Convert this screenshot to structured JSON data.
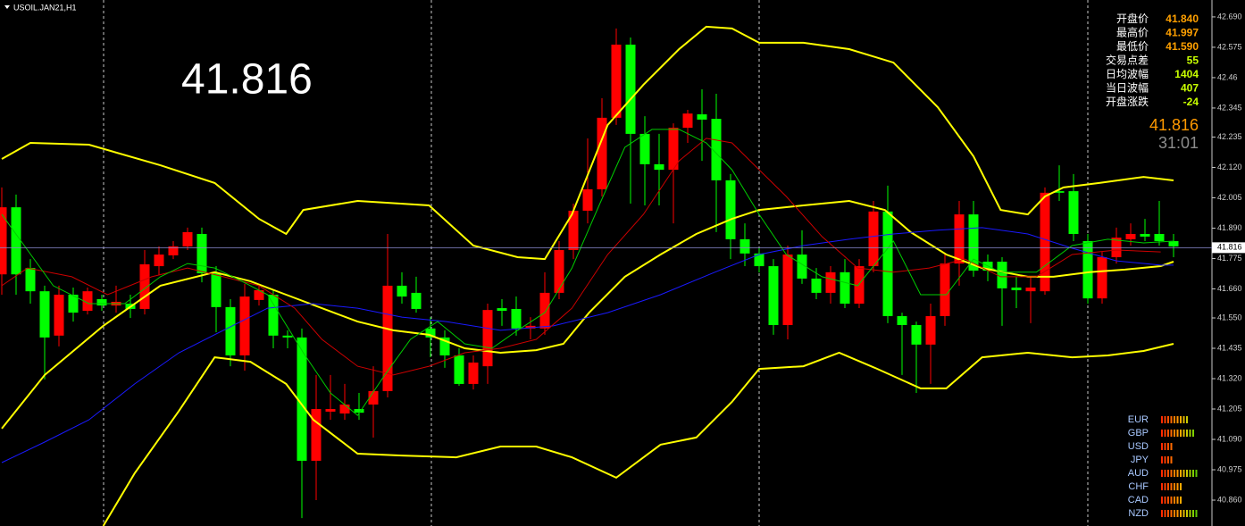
{
  "chart_data": {
    "type": "candlestick",
    "symbol": "USOIL.JAN21,H1",
    "up_color": "#ff0000",
    "down_color": "#00ff00",
    "open": [
      41.715,
      41.969,
      41.739,
      41.651,
      41.483,
      41.638,
      41.577,
      41.621,
      41.597,
      41.604,
      41.584,
      41.746,
      41.787,
      41.821,
      41.868,
      41.719,
      41.591,
      41.408,
      41.618,
      41.638,
      41.483,
      41.476,
      41.009,
      41.195,
      41.188,
      41.205,
      41.222,
      41.273,
      41.672,
      41.645,
      41.51,
      41.476,
      41.408,
      41.3,
      41.367,
      41.587,
      41.584,
      41.51,
      41.51,
      41.645,
      41.807,
      41.956,
      42.037,
      42.308,
      42.585,
      42.247,
      42.132,
      42.111,
      42.27,
      42.321,
      42.304,
      42.071,
      41.848,
      41.794,
      41.746,
      41.523,
      41.79,
      41.699,
      41.645,
      41.723,
      41.604,
      41.746,
      41.953,
      41.557,
      41.523,
      41.449,
      41.557,
      41.756,
      41.942,
      41.763,
      41.763,
      41.665,
      41.651,
      41.651,
      42.03,
      42.03,
      41.841,
      41.624,
      41.78,
      41.848,
      41.868,
      41.868,
      41.841
    ],
    "high": [
      42.044,
      42.017,
      41.773,
      41.672,
      41.672,
      41.665,
      41.665,
      41.638,
      41.672,
      41.638,
      41.807,
      41.821,
      41.841,
      41.892,
      41.892,
      41.746,
      41.621,
      41.679,
      41.679,
      41.655,
      41.503,
      41.51,
      41.334,
      41.334,
      41.3,
      41.266,
      41.367,
      41.868,
      41.723,
      41.706,
      41.553,
      41.503,
      41.435,
      41.408,
      41.604,
      41.621,
      41.631,
      41.553,
      41.723,
      41.841,
      41.983,
      42.23,
      42.382,
      42.646,
      42.612,
      42.314,
      42.247,
      42.287,
      42.338,
      42.416,
      42.399,
      42.095,
      41.908,
      41.814,
      41.773,
      41.824,
      41.882,
      41.739,
      41.746,
      41.773,
      41.773,
      41.993,
      42.051,
      41.57,
      41.536,
      41.604,
      41.79,
      41.993,
      41.993,
      41.79,
      41.78,
      41.706,
      41.706,
      42.044,
      42.128,
      42.095,
      41.868,
      41.8,
      41.892,
      41.908,
      41.925,
      41.993,
      41.868
    ],
    "low": [
      41.638,
      41.638,
      41.604,
      41.317,
      41.442,
      41.536,
      41.563,
      41.577,
      41.57,
      41.55,
      41.563,
      41.712,
      41.773,
      41.807,
      41.685,
      41.496,
      41.367,
      41.35,
      41.597,
      41.435,
      41.435,
      40.792,
      40.86,
      41.164,
      41.164,
      41.164,
      41.097,
      41.249,
      41.604,
      41.57,
      41.401,
      41.361,
      41.293,
      41.279,
      41.3,
      41.52,
      41.483,
      41.469,
      41.486,
      41.621,
      41.773,
      41.908,
      42.01,
      42.281,
      41.983,
      41.976,
      41.976,
      41.908,
      42.213,
      42.145,
      41.875,
      41.773,
      41.746,
      41.722,
      41.486,
      41.469,
      41.679,
      41.621,
      41.604,
      41.587,
      41.587,
      41.723,
      41.53,
      41.334,
      41.266,
      41.3,
      41.52,
      41.672,
      41.706,
      41.689,
      41.52,
      41.587,
      41.53,
      41.638,
      41.993,
      41.841,
      41.604,
      41.604,
      41.756,
      41.824,
      41.841,
      41.824,
      41.78
    ],
    "close": [
      41.969,
      41.715,
      41.651,
      41.476,
      41.638,
      41.57,
      41.651,
      41.597,
      41.611,
      41.584,
      41.753,
      41.79,
      41.821,
      41.875,
      41.719,
      41.591,
      41.408,
      41.631,
      41.655,
      41.483,
      41.476,
      41.009,
      41.205,
      41.205,
      41.222,
      41.191,
      41.273,
      41.672,
      41.631,
      41.584,
      41.476,
      41.408,
      41.3,
      41.381,
      41.58,
      41.577,
      41.51,
      41.52,
      41.645,
      41.807,
      41.956,
      42.037,
      42.308,
      42.585,
      42.247,
      42.132,
      42.111,
      42.27,
      42.324,
      42.301,
      42.071,
      41.848,
      41.794,
      41.746,
      41.523,
      41.79,
      41.699,
      41.645,
      41.723,
      41.604,
      41.746,
      41.953,
      41.557,
      41.523,
      41.449,
      41.557,
      41.756,
      41.942,
      41.729,
      41.729,
      41.662,
      41.655,
      41.665,
      42.024,
      42.024,
      41.868,
      41.624,
      41.78,
      41.854,
      41.868,
      41.858,
      41.841,
      41.821
    ],
    "overlays": [
      {
        "color": "#ffff00",
        "x": [
          0,
          2,
          6.1,
          11.1,
          14.9,
          18,
          19.9,
          21.1,
          24.9,
          29.9,
          33,
          36.1,
          38,
          39.9,
          42.4,
          44.9,
          47.4,
          49.3,
          51.1,
          53,
          56.1,
          59.3,
          62.4,
          65.5,
          68,
          69.9,
          71.8,
          73,
          74.3,
          76.8,
          79.9,
          82
        ],
        "values": [
          42.152,
          42.213,
          42.206,
          42.128,
          42.061,
          41.925,
          41.868,
          41.959,
          41.993,
          41.976,
          41.824,
          41.78,
          41.773,
          41.942,
          42.281,
          42.433,
          42.568,
          42.653,
          42.646,
          42.592,
          42.592,
          42.568,
          42.517,
          42.348,
          42.162,
          41.959,
          41.942,
          42.01,
          42.044,
          42.061,
          42.084,
          42.071
        ]
      },
      {
        "color": "#ffff00",
        "x": [
          0,
          3,
          7.1,
          11.1,
          14.9,
          17.4,
          19.9,
          22.4,
          24.9,
          27.4,
          29.9,
          32.4,
          34.9,
          37.4,
          39.3,
          41.1,
          43.6,
          46.1,
          48.6,
          51.1,
          53,
          56.1,
          59.3,
          61.8,
          63.6,
          66.1,
          68.6,
          71.8,
          73.6,
          76.1,
          78.6,
          81.1,
          82
        ],
        "values": [
          41.131,
          41.334,
          41.52,
          41.672,
          41.723,
          41.689,
          41.638,
          41.587,
          41.536,
          41.503,
          41.486,
          41.435,
          41.418,
          41.428,
          41.452,
          41.57,
          41.706,
          41.79,
          41.868,
          41.925,
          41.959,
          41.976,
          41.993,
          41.959,
          41.875,
          41.79,
          41.739,
          41.706,
          41.706,
          41.723,
          41.733,
          41.746,
          41.763
        ]
      },
      {
        "color": "#ffff00",
        "x": [
          7.1,
          9.3,
          12.4,
          14.9,
          17.4,
          19.9,
          21.8,
          24.9,
          28,
          31.8,
          34.9,
          37.4,
          39.9,
          43,
          46.1,
          48.6,
          51.1,
          53,
          56.1,
          58.6,
          61.1,
          64.3,
          66.1,
          68.6,
          71.8,
          74.9,
          77.4,
          79.9,
          82
        ],
        "values": [
          40.762,
          40.962,
          41.198,
          41.401,
          41.384,
          41.3,
          41.164,
          41.036,
          41.029,
          41.022,
          41.063,
          41.063,
          41.022,
          40.945,
          41.07,
          41.097,
          41.232,
          41.357,
          41.367,
          41.418,
          41.361,
          41.283,
          41.283,
          41.401,
          41.418,
          41.401,
          41.408,
          41.425,
          41.452
        ]
      },
      {
        "color": "#1a1aff",
        "x": [
          0,
          3,
          6.1,
          9.3,
          12.4,
          15.5,
          18.6,
          21.8,
          24.9,
          28,
          31.1,
          34.9,
          38.6,
          42.4,
          46.1,
          49.9,
          53,
          56.1,
          59.3,
          62.4,
          65.5,
          68.6,
          71.8,
          74.9,
          78,
          81.1,
          82
        ],
        "values": [
          41.002,
          41.08,
          41.164,
          41.3,
          41.418,
          41.503,
          41.587,
          41.604,
          41.587,
          41.553,
          41.536,
          41.503,
          41.52,
          41.57,
          41.638,
          41.723,
          41.79,
          41.824,
          41.848,
          41.868,
          41.882,
          41.892,
          41.868,
          41.814,
          41.766,
          41.75,
          41.75
        ]
      },
      {
        "color": "#cc0000",
        "x": [
          0,
          1.8,
          4.9,
          7.4,
          10.5,
          13,
          15.5,
          18,
          20.5,
          22.4,
          24.9,
          27.4,
          29.9,
          32.4,
          34.9,
          37.4,
          39.9,
          42.4,
          44.9,
          47.4,
          49.3,
          51.1,
          53,
          54.9,
          57.4,
          59.9,
          62.4,
          64.9,
          67.4,
          69.9,
          72.4,
          74.9,
          78,
          81.1
        ],
        "values": [
          41.672,
          41.739,
          41.706,
          41.638,
          41.706,
          41.739,
          41.706,
          41.672,
          41.587,
          41.469,
          41.367,
          41.334,
          41.367,
          41.418,
          41.435,
          41.469,
          41.587,
          41.79,
          41.942,
          42.145,
          42.23,
          42.213,
          42.111,
          42.01,
          41.858,
          41.739,
          41.723,
          41.739,
          41.773,
          41.706,
          41.706,
          41.79,
          41.807,
          41.8
        ]
      },
      {
        "color": "#00cc00",
        "x": [
          0,
          1.8,
          3.6,
          6.1,
          8.6,
          11.1,
          13,
          14.9,
          16.8,
          18.6,
          21.1,
          23,
          24.9,
          26.8,
          28.6,
          30.5,
          32.4,
          34.3,
          36.1,
          38,
          39.9,
          41.8,
          43.6,
          45.5,
          47.4,
          49.3,
          51.1,
          53,
          54.9,
          57.4,
          59.9,
          62.4,
          64.3,
          66.1,
          68,
          69.9,
          72.4,
          74.9,
          77.4,
          79.9,
          82
        ],
        "values": [
          41.942,
          41.807,
          41.672,
          41.604,
          41.604,
          41.706,
          41.756,
          41.739,
          41.689,
          41.638,
          41.418,
          41.266,
          41.181,
          41.334,
          41.469,
          41.536,
          41.452,
          41.435,
          41.503,
          41.57,
          41.739,
          41.976,
          42.196,
          42.264,
          42.264,
          42.213,
          42.111,
          41.942,
          41.79,
          41.706,
          41.672,
          41.841,
          41.638,
          41.638,
          41.773,
          41.723,
          41.723,
          41.824,
          41.848,
          41.834,
          41.841
        ]
      }
    ],
    "current_price": {
      "value": 41.816,
      "label": "41.816"
    },
    "ylim": [
      40.762,
      42.754
    ],
    "yticks": [
      {
        "value": 42.69,
        "label": "42.690"
      },
      42.575,
      42.46,
      42.345,
      42.235,
      {
        "value": 42.12,
        "label": "42.120"
      },
      42.005,
      {
        "value": 41.89,
        "label": "41.890"
      },
      41.775,
      {
        "value": 41.66,
        "label": "41.660"
      },
      {
        "value": 41.55,
        "label": "41.550"
      },
      41.435,
      {
        "value": 41.32,
        "label": "41.320"
      },
      41.205,
      {
        "value": 41.09,
        "label": "41.090"
      },
      40.975,
      {
        "value": 40.86,
        "label": "40.860"
      }
    ]
  },
  "quote_panel": [
    {
      "label": "开盘价",
      "value": "41.840"
    },
    {
      "label": "最高价",
      "value": "41.997"
    },
    {
      "label": "最低价",
      "value": "41.590"
    },
    {
      "label": "交易点差",
      "value": "55"
    },
    {
      "label": "日均波幅",
      "value": "1404"
    },
    {
      "label": "当日波幅",
      "value": "407"
    },
    {
      "label": "开盘涨跌",
      "value": "-24"
    }
  ],
  "countdown": "31:01",
  "currency_strength": [
    {
      "name": "EUR",
      "value": 9
    },
    {
      "name": "GBP",
      "value": 11
    },
    {
      "name": "USD",
      "value": 4
    },
    {
      "name": "JPY",
      "value": 4
    },
    {
      "name": "AUD",
      "value": 12
    },
    {
      "name": "CHF",
      "value": 7
    },
    {
      "name": "CAD",
      "value": 7
    },
    {
      "name": "NZD",
      "value": 12
    }
  ]
}
